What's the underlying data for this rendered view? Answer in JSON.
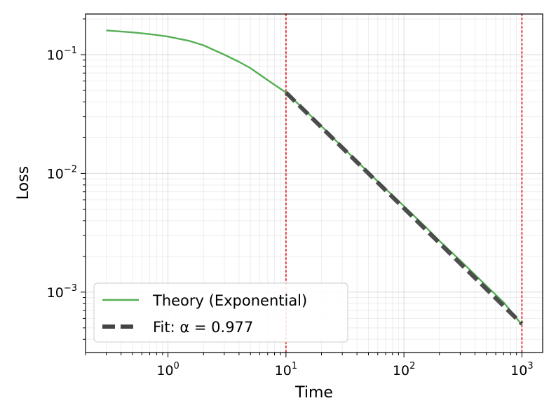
{
  "chart_data": {
    "type": "line",
    "xscale": "log",
    "yscale": "log",
    "xlim": [
      0.2,
      1500
    ],
    "ylim": [
      0.00031,
      0.22
    ],
    "xlabel": "Time",
    "ylabel": "Loss",
    "grid": true,
    "legend_position": "lower-left",
    "x_ticks": [
      {
        "base": "10",
        "exp": "0",
        "value": 1
      },
      {
        "base": "10",
        "exp": "1",
        "value": 10
      },
      {
        "base": "10",
        "exp": "2",
        "value": 100
      },
      {
        "base": "10",
        "exp": "3",
        "value": 1000
      }
    ],
    "y_ticks": [
      {
        "base": "10",
        "exp": "−3",
        "value": 0.001
      },
      {
        "base": "10",
        "exp": "−2",
        "value": 0.01
      },
      {
        "base": "10",
        "exp": "−1",
        "value": 0.1
      }
    ],
    "vertical_lines": [
      {
        "x": 10,
        "color": "#e8383b",
        "style": "dotted"
      },
      {
        "x": 1000,
        "color": "#e8383b",
        "style": "dotted"
      }
    ],
    "series": [
      {
        "name": "Theory (Exponential)",
        "color": "#55b055",
        "style": "solid",
        "x": [
          0.3,
          0.5,
          0.7,
          1,
          1.5,
          2,
          3,
          4,
          5,
          7,
          10,
          15,
          20,
          30,
          50,
          70,
          100,
          150,
          200,
          300,
          500,
          700,
          1000
        ],
        "y": [
          0.16,
          0.154,
          0.149,
          0.142,
          0.131,
          0.12,
          0.1,
          0.087,
          0.077,
          0.061,
          0.048,
          0.033,
          0.025,
          0.0167,
          0.0102,
          0.0074,
          0.0053,
          0.0036,
          0.0027,
          0.00185,
          0.00113,
          0.00082,
          0.00053
        ]
      },
      {
        "name": "Fit: α = 0.977",
        "color": "#444444",
        "style": "dashed",
        "x": [
          10,
          1000
        ],
        "y": [
          0.048,
          0.00054
        ]
      }
    ]
  }
}
